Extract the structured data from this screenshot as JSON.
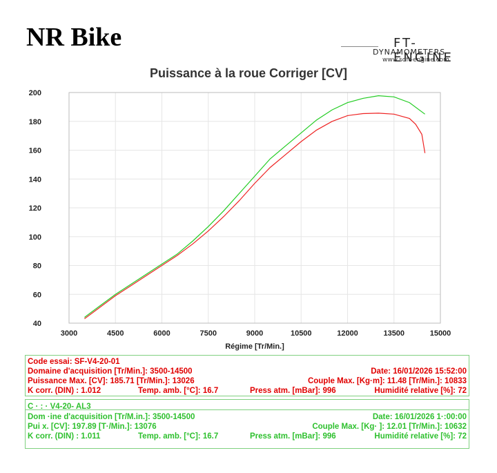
{
  "header": {
    "title": "NR Bike",
    "logo_mark": "FT-ENGINE",
    "logo_sub": "DYNAMOMETERS",
    "logo_url": "www.soft-engine.com"
  },
  "chart_data": {
    "type": "line",
    "title": "Puissance à la roue Corriger [CV]",
    "xlabel": "Régime [Tr/Min.]",
    "ylabel": "",
    "xlim": [
      3000,
      15000
    ],
    "ylim": [
      40,
      200
    ],
    "xticks": [
      "3000",
      "4500",
      "6000",
      "7500",
      "9000",
      "10500",
      "12000",
      "13500",
      "15000"
    ],
    "yticks": [
      "40",
      "60",
      "80",
      "100",
      "120",
      "140",
      "160",
      "180",
      "200"
    ],
    "grid": true,
    "series": [
      {
        "color": "#22cc22",
        "x": [
          3500,
          4000,
          4500,
          5000,
          5500,
          6000,
          6500,
          7000,
          7500,
          8000,
          8500,
          9000,
          9500,
          10000,
          10500,
          11000,
          11500,
          12000,
          12500,
          13000,
          13500,
          14000,
          14500
        ],
        "y": [
          44,
          52,
          60,
          67,
          74,
          81,
          88,
          97,
          107,
          118,
          130,
          142,
          154,
          163,
          172,
          181,
          188,
          193,
          196,
          197.8,
          197,
          193,
          185
        ]
      },
      {
        "color": "#ee2222",
        "x": [
          3500,
          4000,
          4500,
          5000,
          5500,
          6000,
          6500,
          7000,
          7500,
          8000,
          8500,
          9000,
          9500,
          10000,
          10500,
          11000,
          11500,
          12000,
          12500,
          13000,
          13500,
          14000,
          14200,
          14400,
          14500
        ],
        "y": [
          43,
          51,
          59,
          66,
          73,
          80,
          87,
          95,
          104,
          114,
          125,
          137,
          148,
          157,
          166,
          174,
          180,
          184,
          185.4,
          185.7,
          185,
          182,
          178,
          171,
          158
        ]
      }
    ]
  },
  "info_red": {
    "row1": {
      "code": "Code essai: SF-V4-20-01"
    },
    "row2": {
      "domaine": "Domaine d'acquisition [Tr/Min.]: 3500-14500",
      "date": "Date: 16/01/2026   15:52:00"
    },
    "row3": {
      "puissance": "Puissance Max. [CV]: 185.71   [Tr/Min.]: 13026",
      "couple": "Couple Max. [Kg·m]: 11.48   [Tr/Min.]: 10833"
    },
    "row4": {
      "kcorr": "K corr. (DIN) : 1.012",
      "temp": "Temp. amb. [°C]: 16.7",
      "press": "Press atm. [mBar]: 996",
      "humid": "Humidité relative [%]: 72"
    }
  },
  "info_green": {
    "row1": {
      "code": "C    ·  :  ·   V4-20-   AL3"
    },
    "row2": {
      "domaine": "Dom  ·ine d'acquisition [Tr/M.in.]: 3500-14500",
      "date": "Date: 16/01/2026   1·:00:00"
    },
    "row3": {
      "puissance": "Pui        x. [CV]: 197.89  [T·/Min.]: 13076",
      "couple": "Couple Max. [Kg·  ]: 12.01   [Tr/Min.]: 10632"
    },
    "row4": {
      "kcorr": "K corr. (DIN) : 1.011",
      "temp": "Temp. amb. [°C]: 16.7",
      "press": "Press atm. [mBar]: 996",
      "humid": "Humidité relative [%]: 72"
    }
  }
}
